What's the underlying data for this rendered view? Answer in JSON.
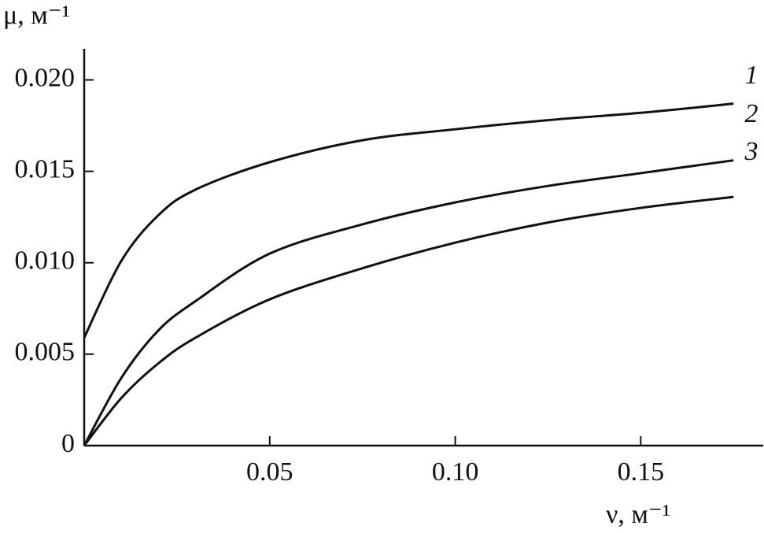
{
  "chart_data": {
    "type": "line",
    "ylabel": "μ, м⁻¹",
    "xlabel": "ν, м⁻¹",
    "x": [
      0,
      0.01,
      0.02,
      0.03,
      0.05,
      0.075,
      0.1,
      0.125,
      0.15,
      0.175
    ],
    "series": [
      {
        "name": "1",
        "color": "#111111",
        "values": [
          0.0059,
          0.0101,
          0.0126,
          0.014,
          0.0155,
          0.0167,
          0.0173,
          0.0178,
          0.0182,
          0.0187
        ]
      },
      {
        "name": "2",
        "color": "#111111",
        "values": [
          0,
          0.0037,
          0.0063,
          0.0079,
          0.0105,
          0.0121,
          0.0133,
          0.0142,
          0.0149,
          0.0156
        ]
      },
      {
        "name": "3",
        "color": "#111111",
        "values": [
          0,
          0.0026,
          0.0045,
          0.0059,
          0.008,
          0.0097,
          0.0111,
          0.0122,
          0.013,
          0.0136
        ]
      }
    ],
    "xlim": [
      0,
      0.183
    ],
    "ylim": [
      0,
      0.0217
    ],
    "xticks": [
      0.05,
      {
        "value": 0.1,
        "label": "0.10"
      },
      0.15
    ],
    "yticks": [
      0,
      0.005,
      {
        "value": 0.01,
        "label": "0.010"
      },
      0.015,
      {
        "value": 0.02,
        "label": "0.020"
      }
    ]
  }
}
